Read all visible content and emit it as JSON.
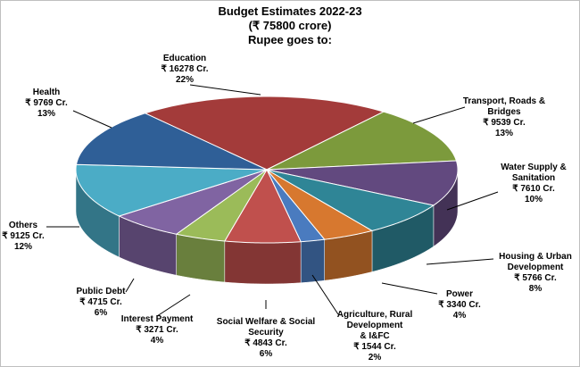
{
  "chart_data": {
    "type": "pie",
    "title_lines": [
      "Budget  Estimates 2022-23",
      "(₹ 75800 crore)",
      "Rupee goes to:"
    ],
    "slices": [
      {
        "label": [
          "Education"
        ],
        "value_text": "₹ 16278 Cr.",
        "pct_text": "22%",
        "value": 16278,
        "color": "#a33b3a"
      },
      {
        "label": [
          "Transport, Roads &",
          "Bridges"
        ],
        "value_text": "₹ 9539 Cr.",
        "pct_text": "13%",
        "value": 9539,
        "color": "#7c9a3c"
      },
      {
        "label": [
          "Water Supply &",
          "Sanitation"
        ],
        "value_text": "₹ 7610 Cr.",
        "pct_text": "10%",
        "value": 7610,
        "color": "#62497f"
      },
      {
        "label": [
          "Housing & Urban",
          "Development"
        ],
        "value_text": "₹ 5766 Cr.",
        "pct_text": "8%",
        "value": 5766,
        "color": "#2f8596"
      },
      {
        "label": [
          "Power"
        ],
        "value_text": "₹ 3340 Cr.",
        "pct_text": "4%",
        "value": 3340,
        "color": "#d7782f"
      },
      {
        "label": [
          "Agriculture, Rural",
          "Development",
          "& I&FC"
        ],
        "value_text": "₹ 1544 Cr.",
        "pct_text": "2%",
        "value": 1544,
        "color": "#4a7bbf"
      },
      {
        "label": [
          "Social Welfare & Social",
          "Security"
        ],
        "value_text": "₹ 4843 Cr.",
        "pct_text": "6%",
        "value": 4843,
        "color": "#c0504d"
      },
      {
        "label": [
          "Interest Payment"
        ],
        "value_text": "₹ 3271 Cr.",
        "pct_text": "4%",
        "value": 3271,
        "color": "#9bbb59"
      },
      {
        "label": [
          "Public Debt"
        ],
        "value_text": "₹ 4715 Cr.",
        "pct_text": "6%",
        "value": 4715,
        "color": "#8064a2"
      },
      {
        "label": [
          "Others"
        ],
        "value_text": "₹ 9125 Cr.",
        "pct_text": "12%",
        "value": 9125,
        "color": "#4bacc6"
      },
      {
        "label": [
          "Health"
        ],
        "value_text": "₹ 9769 Cr.",
        "pct_text": "13%",
        "value": 9769,
        "color": "#2f5f97"
      }
    ]
  }
}
